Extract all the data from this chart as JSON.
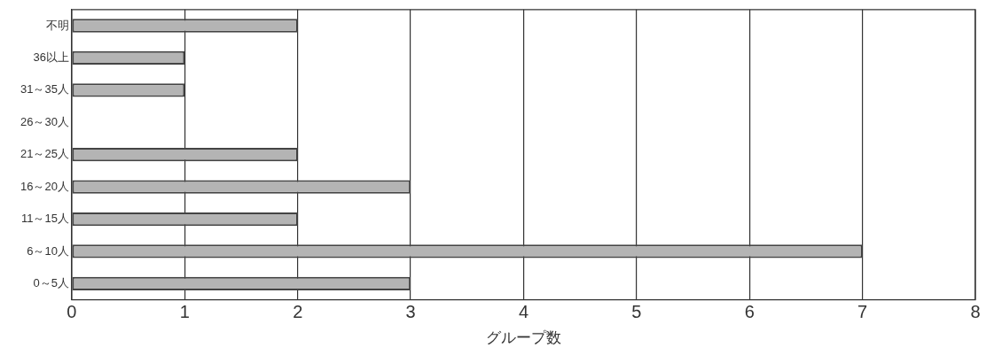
{
  "chart_data": {
    "type": "bar",
    "orientation": "horizontal",
    "xlabel": "グループ数",
    "categories": [
      "不明",
      "36以上",
      "31～35人",
      "26～30人",
      "21～25人",
      "16～20人",
      "11～15人",
      "6～10人",
      "0～5人"
    ],
    "values": [
      2,
      1,
      1,
      0,
      2,
      3,
      2,
      7,
      3
    ],
    "color": "#b4b4b4",
    "xlim": [
      0,
      8
    ],
    "xticks": [
      0,
      1,
      2,
      3,
      4,
      5,
      6,
      7,
      8
    ],
    "grid": "x",
    "legend": false
  }
}
